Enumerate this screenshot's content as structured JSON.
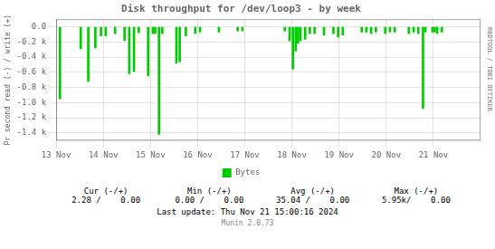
{
  "chart_data": {
    "type": "bar",
    "title": "Disk throughput for /dev/loop3 - by week",
    "y_label": "Pr second read (-) / write (+)",
    "x": [
      0.08,
      0.52,
      0.68,
      0.83,
      0.95,
      1.05,
      1.25,
      1.45,
      1.55,
      1.65,
      1.75,
      1.95,
      2.05,
      2.1,
      2.18,
      2.25,
      2.55,
      2.62,
      2.75,
      2.95,
      3.05,
      3.45,
      3.85,
      3.95,
      4.85,
      4.95,
      5.02,
      5.08,
      5.13,
      5.18,
      5.28,
      5.38,
      5.48,
      5.68,
      5.88,
      5.98,
      6.08,
      6.48,
      6.58,
      6.68,
      6.78,
      6.98,
      7.08,
      7.18,
      7.48,
      7.58,
      7.68,
      7.78,
      7.83,
      7.98,
      8.03,
      8.08,
      8.18
    ],
    "series": [
      {
        "name": "Bytes",
        "color": "#00cc00",
        "values": [
          -950,
          -290,
          -720,
          -280,
          -120,
          -120,
          -90,
          -180,
          -620,
          -590,
          -80,
          -650,
          -90,
          -90,
          -1420,
          -90,
          -480,
          -460,
          -120,
          -90,
          -70,
          -70,
          -55,
          -55,
          -55,
          -185,
          -560,
          -320,
          -220,
          -185,
          -165,
          -90,
          -90,
          -110,
          -90,
          -135,
          -110,
          -70,
          -70,
          -90,
          -70,
          -90,
          -70,
          -70,
          -90,
          -70,
          -90,
          -1080,
          -70,
          -70,
          -70,
          -90,
          -70
        ]
      }
    ],
    "xlim": [
      0,
      9
    ],
    "xticks": [
      {
        "value": 0,
        "label": "13 Nov"
      },
      {
        "value": 1,
        "label": "14 Nov"
      },
      {
        "value": 2,
        "label": "15 Nov"
      },
      {
        "value": 3,
        "label": "16 Nov"
      },
      {
        "value": 4,
        "label": "17 Nov"
      },
      {
        "value": 5,
        "label": "18 Nov"
      },
      {
        "value": 6,
        "label": "19 Nov"
      },
      {
        "value": 7,
        "label": "20 Nov"
      },
      {
        "value": 8,
        "label": "21 Nov"
      }
    ],
    "ylim": [
      -1500,
      100
    ],
    "yticks": [
      {
        "value": 0,
        "label": "0.0"
      },
      {
        "value": -200,
        "label": "-0.2 k"
      },
      {
        "value": -400,
        "label": "-0.4 k"
      },
      {
        "value": -600,
        "label": "-0.6 k"
      },
      {
        "value": -800,
        "label": "-0.8 k"
      },
      {
        "value": -1000,
        "label": "-1.0 k"
      },
      {
        "value": -1200,
        "label": "-1.2 k"
      },
      {
        "value": -1400,
        "label": "-1.4 k"
      }
    ],
    "grid": true,
    "legend": "bottom",
    "annotations": [
      "Cur (-/+)",
      "Min (-/+)",
      "Avg (-/+)",
      "Max (-/+)",
      "2.28 /    0.00",
      "0.00 /    0.00",
      "35.04 /    0.00",
      "5.95k/    0.00",
      "Last update: Thu Nov 21 15:00:16 2024",
      "Munin 2.0.73",
      "RRDTOOL / TOBI OETIKER"
    ]
  }
}
